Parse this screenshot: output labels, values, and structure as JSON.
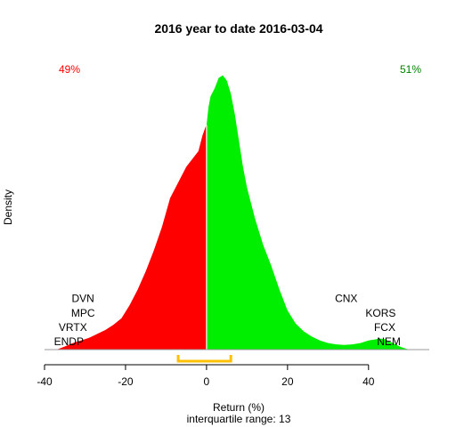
{
  "chart_data": {
    "type": "area",
    "title": "2016  year to date 2016-03-04",
    "xlabel": "Return (%)",
    "ylabel": "Density",
    "subtitle": "interquartile range: 13",
    "xlim": [
      -40,
      55
    ],
    "xticks": [
      -40,
      -20,
      0,
      20,
      40
    ],
    "xtick_labels": [
      "-40",
      "-20",
      "0",
      "20",
      "40"
    ],
    "ylim": [
      0,
      0.11
    ],
    "grid": false,
    "split_at": 0,
    "colors": {
      "negative": "#ff0000",
      "positive": "#00ee00",
      "split_line": "#ffffff",
      "iqr": "#ffc000",
      "axis": "#999999"
    },
    "pct_left": {
      "text": "49%",
      "color": "#ff0000"
    },
    "pct_right": {
      "text": "51%",
      "color": "#008000"
    },
    "iqr": [
      -7,
      6
    ],
    "density": {
      "x": [
        -37,
        -35,
        -33,
        -31,
        -29,
        -27,
        -25,
        -23,
        -21,
        -19,
        -17,
        -15,
        -13,
        -11,
        -9,
        -7,
        -5,
        -3,
        -2,
        -1,
        -0.3,
        0,
        0.5,
        1,
        2,
        3,
        4,
        5,
        6,
        7,
        8,
        9,
        10,
        12,
        14,
        16,
        18,
        20,
        22,
        24,
        26,
        28,
        30,
        32,
        34,
        36,
        38,
        40,
        42,
        43,
        44,
        46,
        48,
        50
      ],
      "y": [
        0,
        0.0012,
        0.0025,
        0.0035,
        0.0045,
        0.006,
        0.0075,
        0.0095,
        0.012,
        0.017,
        0.023,
        0.03,
        0.038,
        0.047,
        0.058,
        0.064,
        0.07,
        0.074,
        0.076,
        0.082,
        0.085,
        0.086,
        0.093,
        0.097,
        0.1,
        0.104,
        0.105,
        0.103,
        0.098,
        0.09,
        0.08,
        0.07,
        0.062,
        0.05,
        0.04,
        0.032,
        0.023,
        0.015,
        0.01,
        0.007,
        0.005,
        0.0035,
        0.0025,
        0.002,
        0.0018,
        0.002,
        0.0025,
        0.0035,
        0.004,
        0.0042,
        0.004,
        0.0025,
        0.001,
        0
      ]
    },
    "labels_left": [
      {
        "text": "DVN",
        "x": -30.5,
        "y": 0.0195
      },
      {
        "text": "MPC",
        "x": -30.5,
        "y": 0.014
      },
      {
        "text": "VRTX",
        "x": -33,
        "y": 0.0085
      },
      {
        "text": "ENDP",
        "x": -34,
        "y": 0.003
      }
    ],
    "labels_right": [
      {
        "text": "CNX",
        "x": 34.5,
        "y": 0.0195
      },
      {
        "text": "KORS",
        "x": 43,
        "y": 0.014
      },
      {
        "text": "FCX",
        "x": 44,
        "y": 0.0085
      },
      {
        "text": "NEM",
        "x": 45,
        "y": 0.003
      }
    ]
  }
}
